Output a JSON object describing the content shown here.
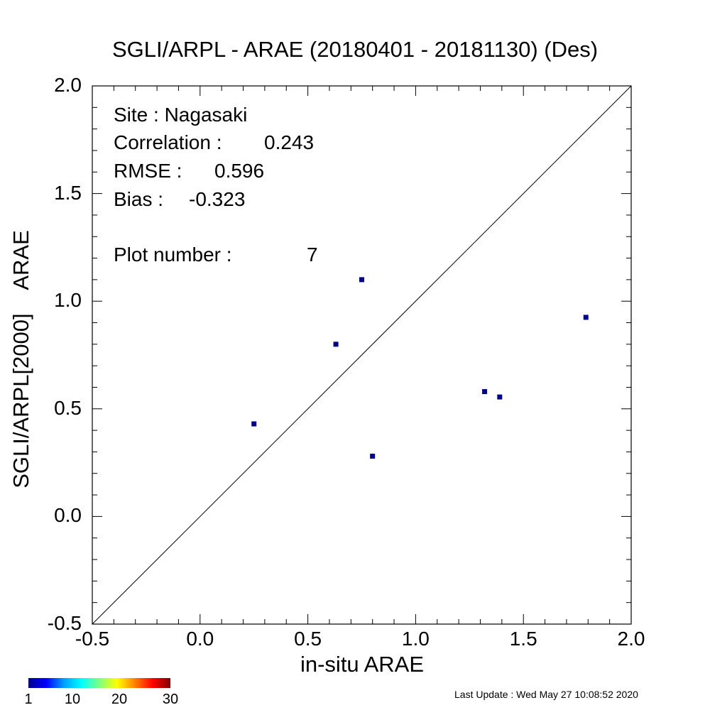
{
  "title": "SGLI/ARPL - ARAE (20180401 - 20181130) (Des)",
  "xlabel": "in-situ ARAE",
  "ylabel": "SGLI/ARPL[2000]    ARAE",
  "stats": {
    "site_label": "Site : Nagasaki",
    "correlation_label": "Correlation :",
    "correlation_value": "0.243",
    "rmse_label": "RMSE :",
    "rmse_value": "0.596",
    "bias_label": "Bias :",
    "bias_value": "-0.323",
    "plot_number_label": "Plot number :",
    "plot_number_value": "7"
  },
  "colorbar": {
    "ticks": [
      "1",
      "10",
      "20",
      "30"
    ],
    "colors": [
      "#00008f",
      "#0000ff",
      "#00ffff",
      "#ffff00",
      "#ff0000",
      "#800000"
    ]
  },
  "last_update": "Last Update : Wed May 27 10:08:52 2020",
  "chart_data": {
    "type": "scatter",
    "title": "SGLI/ARPL - ARAE (20180401 - 20181130) (Des)",
    "xlabel": "in-situ ARAE",
    "ylabel": "SGLI/ARPL[2000]    ARAE",
    "xlim": [
      -0.5,
      2.0
    ],
    "ylim": [
      -0.5,
      2.0
    ],
    "xticks": [
      "-0.5",
      "0.0",
      "0.5",
      "1.0",
      "1.5",
      "2.0"
    ],
    "yticks": [
      "-0.5",
      "0.0",
      "0.5",
      "1.0",
      "1.5",
      "2.0"
    ],
    "one_to_one_line": true,
    "grid": false,
    "marker_color": "#00008f",
    "points": [
      {
        "x": 0.25,
        "y": 0.43
      },
      {
        "x": 0.63,
        "y": 0.8
      },
      {
        "x": 0.75,
        "y": 1.1
      },
      {
        "x": 0.8,
        "y": 0.28
      },
      {
        "x": 1.32,
        "y": 0.58
      },
      {
        "x": 1.39,
        "y": 0.555
      },
      {
        "x": 1.79,
        "y": 0.925
      }
    ]
  }
}
